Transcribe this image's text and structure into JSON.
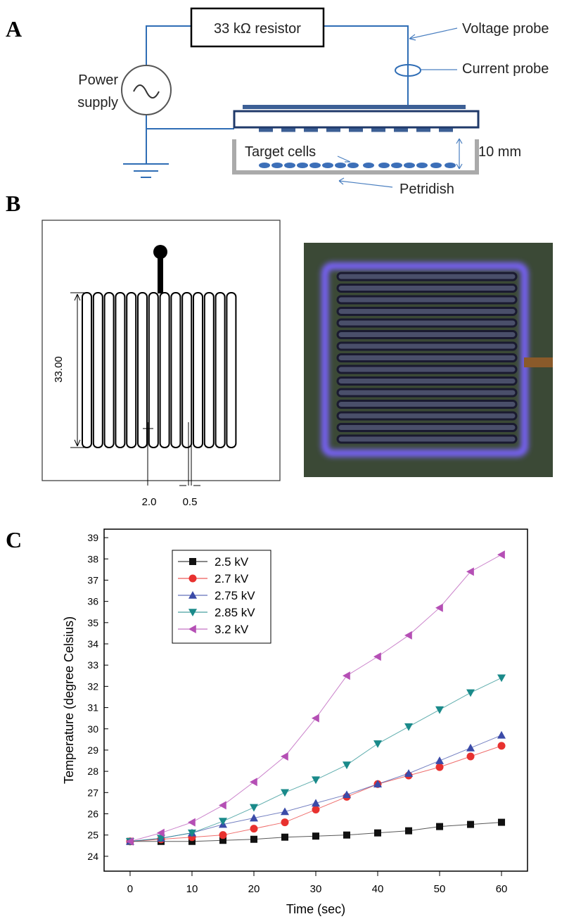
{
  "panel_a": {
    "label": "A",
    "resistor": "33 kΩ resistor",
    "voltage_probe": "Voltage probe",
    "current_probe": "Current probe",
    "power_supply": [
      "Power",
      "supply"
    ],
    "target_cells": "Target cells",
    "gap": "10 mm",
    "petridish": "Petridish"
  },
  "panel_b": {
    "label": "B",
    "height_dim": "33.00",
    "width_dim": "2.0",
    "gap_dim": "0.5"
  },
  "panel_c": {
    "label": "C"
  },
  "chart_data": {
    "type": "line",
    "x_label": "Time (sec)",
    "y_label": "Temperature (degree Celsius)",
    "x": [
      0,
      5,
      10,
      15,
      20,
      25,
      30,
      35,
      40,
      45,
      50,
      55,
      60
    ],
    "xlim": [
      -4.2,
      64.2
    ],
    "xticks": [
      0,
      10,
      20,
      30,
      40,
      50,
      60
    ],
    "ylim": [
      23.3,
      39.4
    ],
    "yticks": [
      24,
      25,
      26,
      27,
      28,
      29,
      30,
      31,
      32,
      33,
      34,
      35,
      36,
      37,
      38,
      39
    ],
    "legend": "upper left",
    "series": [
      {
        "name": "2.5 kV",
        "color": "#111111",
        "marker": "square",
        "values": [
          24.7,
          24.7,
          24.7,
          24.75,
          24.8,
          24.9,
          24.95,
          25.0,
          25.1,
          25.2,
          25.4,
          25.5,
          25.6
        ]
      },
      {
        "name": "2.7 kV",
        "color": "#e8312f",
        "marker": "circle",
        "values": [
          24.7,
          24.8,
          24.9,
          25.0,
          25.3,
          25.6,
          26.2,
          26.8,
          27.4,
          27.8,
          28.2,
          28.7,
          29.2
        ]
      },
      {
        "name": "2.75 kV",
        "color": "#3b4ba8",
        "marker": "triangle-up",
        "values": [
          24.7,
          24.85,
          25.1,
          25.5,
          25.8,
          26.1,
          26.5,
          26.9,
          27.4,
          27.9,
          28.5,
          29.1,
          29.7
        ]
      },
      {
        "name": "2.85 kV",
        "color": "#1a8a8a",
        "marker": "triangle-down",
        "values": [
          24.7,
          24.85,
          25.1,
          25.65,
          26.3,
          27.0,
          27.6,
          28.3,
          29.3,
          30.1,
          30.9,
          31.7,
          32.4
        ]
      },
      {
        "name": "3.2 kV",
        "color": "#b54fb5",
        "marker": "triangle-left",
        "values": [
          24.7,
          25.1,
          25.6,
          26.4,
          27.5,
          28.7,
          30.5,
          32.5,
          33.4,
          34.4,
          35.7,
          37.4,
          38.2
        ]
      }
    ]
  }
}
